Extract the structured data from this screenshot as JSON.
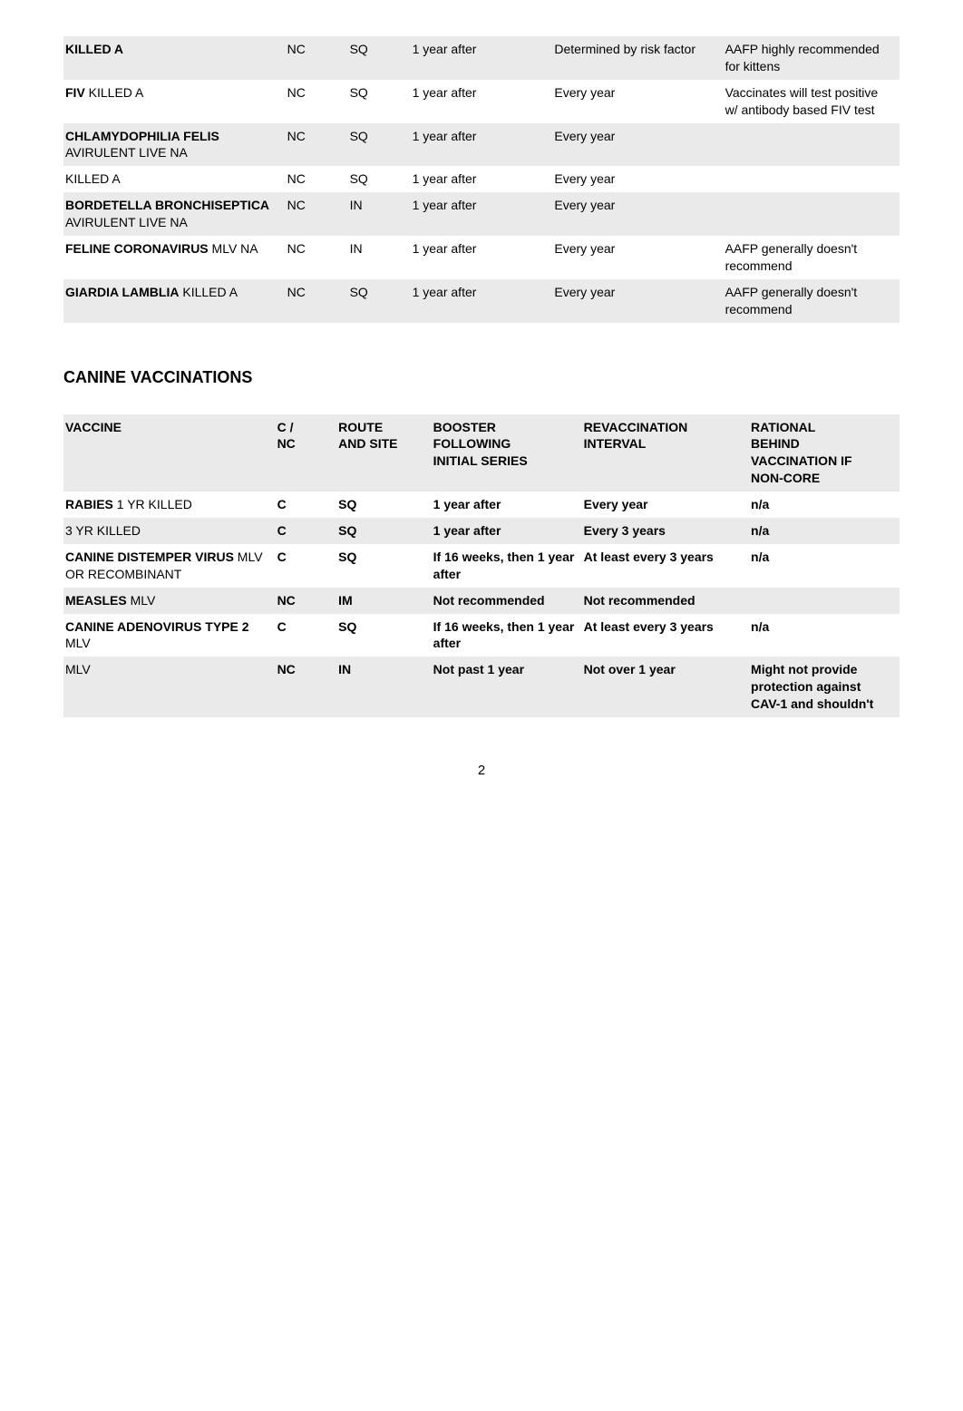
{
  "table1": {
    "colors": {
      "row_bg_stripe": "#eaeaea",
      "row_bg_plain": "#ffffff",
      "text": "#000000"
    },
    "fontsize": 14,
    "rows": [
      {
        "stripe": true,
        "c0b": "KILLED A",
        "c0": "",
        "c1": "NC",
        "c2": "SQ",
        "c3": "1 year after",
        "c4": "Determined by risk factor",
        "c5": "AAFP highly recommended for kittens"
      },
      {
        "stripe": false,
        "c0b": "FIV",
        "c0": " KILLED A",
        "c1": "NC",
        "c2": "SQ",
        "c3": "1 year after",
        "c4": "Every year",
        "c5": "Vaccinates will test positive w/ antibody based FIV test"
      },
      {
        "stripe": true,
        "c0b": "CHLAMYDOPHILIA FELIS",
        "c0": " AVIRULENT LIVE NA",
        "c1": "NC",
        "c2": "SQ",
        "c3": "1 year after",
        "c4": "Every year",
        "c5": ""
      },
      {
        "stripe": false,
        "c0b": "",
        "c0": "KILLED A",
        "c1": "NC",
        "c2": "SQ",
        "c3": "1 year after",
        "c4": "Every year",
        "c5": ""
      },
      {
        "stripe": true,
        "c0b": "BORDETELLA BRONCHISEPTICA",
        "c0": " AVIRULENT LIVE NA",
        "c1": "NC",
        "c2": "IN",
        "c3": "1 year after",
        "c4": "Every year",
        "c5": ""
      },
      {
        "stripe": false,
        "c0b": "FELINE CORONAVIRUS",
        "c0": " MLV NA",
        "c1": "NC",
        "c2": "IN",
        "c3": "1 year after",
        "c4": "Every year",
        "c5": "AAFP generally doesn't recommend"
      },
      {
        "stripe": true,
        "c0b": "GIARDIA LAMBLIA",
        "c0": " KILLED A",
        "c1": "NC",
        "c2": "SQ",
        "c3": "1 year after",
        "c4": "Every year",
        "c5": "AAFP generally doesn't recommend"
      }
    ]
  },
  "section_title": "CANINE VACCINATIONS",
  "table2": {
    "colors": {
      "row_bg_stripe": "#eaeaea",
      "row_bg_plain": "#ffffff",
      "text": "#000000"
    },
    "fontsize": 14,
    "header": {
      "c0": "VACCINE",
      "c1a": "C /",
      "c1b": "NC",
      "c2a": "ROUTE",
      "c2b": "AND SITE",
      "c3a": "BOOSTER",
      "c3b": "FOLLOWING",
      "c3c": "INITIAL SERIES",
      "c4a": "REVACCINATION",
      "c4b": "INTERVAL",
      "c5a": "RATIONAL",
      "c5b": "BEHIND",
      "c5c": "VACCINATION IF",
      "c5d": "NON-CORE"
    },
    "rows": [
      {
        "stripe": false,
        "c0b": "RABIES",
        "c0": " 1 YR KILLED",
        "c1": "C",
        "c2": "SQ",
        "c3": "1 year after",
        "c4": "Every year",
        "c5": "n/a"
      },
      {
        "stripe": true,
        "c0b": "",
        "c0": "3 YR KILLED",
        "c1": "C",
        "c2": "SQ",
        "c3": "1 year after",
        "c4": "Every 3 years",
        "c5": "n/a"
      },
      {
        "stripe": false,
        "c0b": "CANINE DISTEMPER VIRUS",
        "c0": " MLV OR RECOMBINANT",
        "c1": "C",
        "c2": "SQ",
        "c3": "If 16 weeks, then 1 year after",
        "c4": "At least every 3 years",
        "c5": "n/a"
      },
      {
        "stripe": true,
        "c0b": "MEASLES",
        "c0": " MLV",
        "c1": "NC",
        "c2": "IM",
        "c3": "Not recommended",
        "c4": "Not recommended",
        "c5": ""
      },
      {
        "stripe": false,
        "c0b": "CANINE ADENOVIRUS TYPE 2",
        "c0": " MLV",
        "c1": "C",
        "c2": "SQ",
        "c3": "If 16 weeks, then 1 year after",
        "c4": "At least every 3 years",
        "c5": "n/a"
      },
      {
        "stripe": true,
        "c0b": "",
        "c0": "MLV",
        "c1": "NC",
        "c2": "IN",
        "c3": "Not past 1 year",
        "c4": "Not over 1 year",
        "c5": "Might not provide protection against CAV-1 and shouldn't"
      }
    ]
  },
  "page_number": "2"
}
